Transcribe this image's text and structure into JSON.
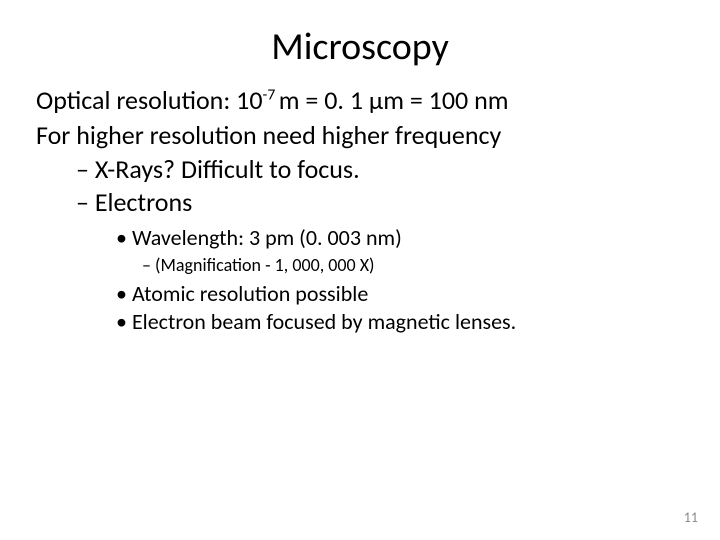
{
  "title": "Microscopy",
  "lines": {
    "optical_pre": "Optical resolution:   10",
    "optical_sup": "-7 ",
    "optical_post": "m = 0. 1 μm = 100 nm",
    "higher": "For higher resolution need higher frequency"
  },
  "dash": {
    "xrays": "X-Rays?  Difficult to focus.",
    "electrons": "Electrons"
  },
  "bullets": {
    "wavelength": "Wavelength:  3 pm (0. 003 nm)",
    "magnification": "(Magnification - 1, 000, 000 X)",
    "atomic": "Atomic resolution possible",
    "beam": "Electron beam focused by magnetic lenses."
  },
  "page_number": "11",
  "colors": {
    "text": "#000000",
    "background": "#ffffff",
    "page_num": "#8a8a8a"
  },
  "fontsizes": {
    "title": 38,
    "body": 26,
    "bullet": 22,
    "subdash": 18,
    "pagenum": 14
  }
}
